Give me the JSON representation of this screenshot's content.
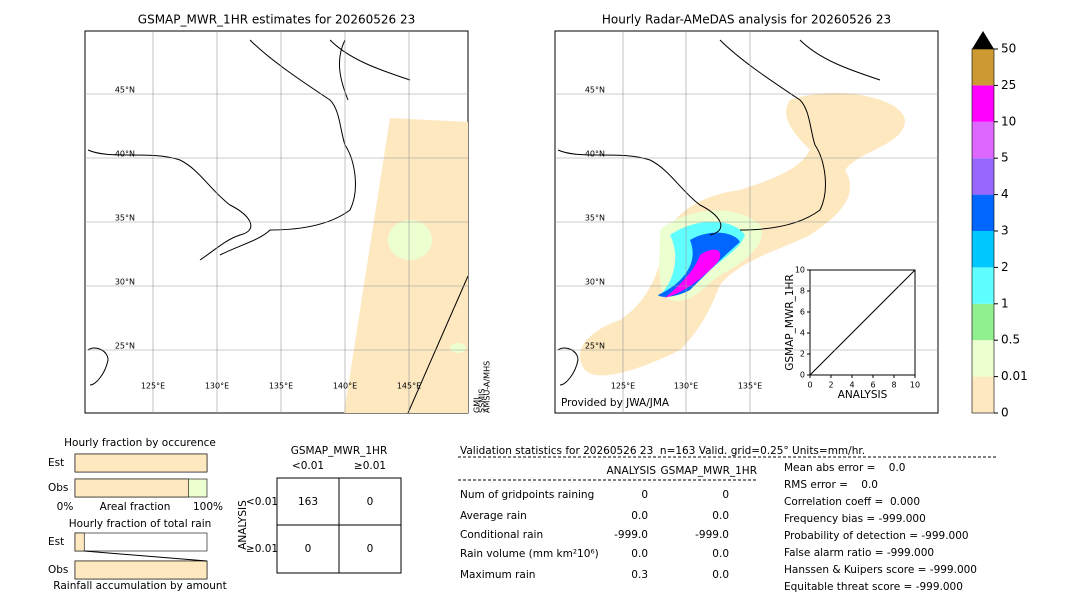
{
  "left_map": {
    "title": "GSMAP_MWR_1HR estimates for 20260526 23",
    "lat_labels": [
      "45°N",
      "40°N",
      "35°N",
      "30°N",
      "25°N"
    ],
    "lon_labels": [
      "125°E",
      "130°E",
      "135°E",
      "140°E",
      "145°E"
    ],
    "sensors": [
      "GMI",
      "SSMIS",
      "AMSU-A/MHS"
    ]
  },
  "right_map": {
    "title": "Hourly Radar-AMeDAS analysis for 20260526 23",
    "lat_labels": [
      "45°N",
      "40°N",
      "35°N",
      "30°N",
      "25°N"
    ],
    "lon_labels": [
      "125°E",
      "130°E",
      "135°E"
    ],
    "credit": "Provided by JWA/JMA",
    "inset": {
      "xlabel": "ANALYSIS",
      "ylabel": "GSMAP_MWR_1HR",
      "xlim": [
        0,
        10
      ],
      "ylim": [
        0,
        10
      ],
      "xticks": [
        0,
        2,
        4,
        6,
        8,
        10
      ],
      "yticks": [
        0,
        2,
        4,
        6,
        8,
        10
      ]
    }
  },
  "colorbar": {
    "levels": [
      0,
      0.01,
      0.5,
      1,
      2,
      3,
      4,
      5,
      10,
      25,
      50
    ],
    "colors": [
      "#fde8c0",
      "#ecffd0",
      "#90f090",
      "#60ffff",
      "#00c8ff",
      "#0066ff",
      "#9966ff",
      "#dd66ff",
      "#ff00ff",
      "#cc9933"
    ]
  },
  "fraction_occurrence": {
    "title": "Hourly fraction by occurence",
    "rows": [
      "Est",
      "Obs"
    ],
    "values": [
      1,
      0.86
    ],
    "axis_labels": [
      "0%",
      "Areal fraction",
      "100%"
    ]
  },
  "fraction_rain": {
    "title": "Hourly fraction of total rain",
    "rows": [
      "Est",
      "Obs"
    ],
    "values": [
      0.07,
      1
    ],
    "footer": "Rainfall accumulation by amount"
  },
  "contingency": {
    "title": "GSMAP_MWR_1HR",
    "columns": [
      "<0.01",
      "≥0.01"
    ],
    "row_title": "ANALYSIS",
    "rows": [
      "<0.01",
      "≥0.01"
    ],
    "cells": [
      [
        163,
        0
      ],
      [
        0,
        0
      ]
    ]
  },
  "validation": {
    "title": "Validation statistics for 20260526 23  n=163 Valid. grid=0.25° Units=mm/hr.",
    "columns": [
      "ANALYSIS",
      "GSMAP_MWR_1HR"
    ],
    "rows": [
      [
        "Num of gridpoints raining",
        "0",
        "0"
      ],
      [
        "Average rain",
        "0.0",
        "0.0"
      ],
      [
        "Conditional rain",
        "-999.0",
        "-999.0"
      ],
      [
        "Rain volume (mm km²10⁶)",
        "0.0",
        "0.0"
      ],
      [
        "Maximum rain",
        "0.3",
        "0.0"
      ]
    ],
    "scores": [
      "Mean abs error =    0.0",
      "RMS error =    0.0",
      "Correlation coeff =  0.000",
      "Frequency bias = -999.000",
      "Probability of detection = -999.000",
      "False alarm ratio = -999.000",
      "Hanssen & Kuipers score = -999.000",
      "Equitable threat score = -999.000"
    ]
  }
}
